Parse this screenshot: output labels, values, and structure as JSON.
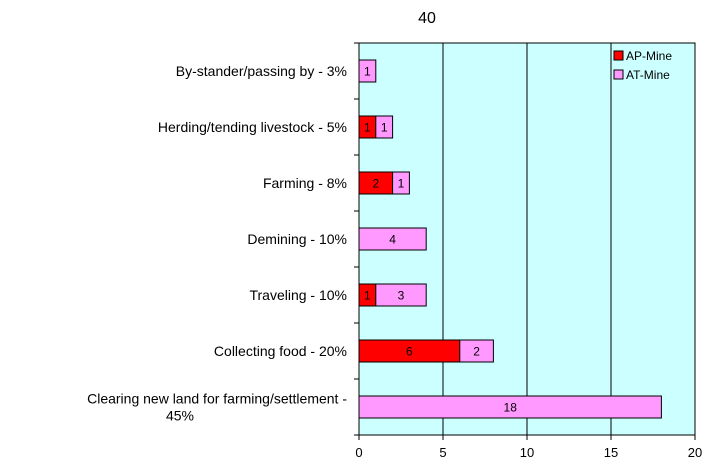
{
  "chart_data": {
    "type": "bar",
    "orientation": "horizontal",
    "stacked": true,
    "title": "40",
    "xlabel": "",
    "ylabel": "",
    "xlim": [
      0,
      20
    ],
    "xticks": [
      0,
      5,
      10,
      15,
      20
    ],
    "grid": "vertical",
    "legend_position": "top-right",
    "categories": [
      [
        "By-stander/passing by - 3%"
      ],
      [
        "Herding/tending livestock - 5%"
      ],
      [
        "Farming - 8%"
      ],
      [
        "Demining - 10%"
      ],
      [
        "Traveling - 10%"
      ],
      [
        "Collecting food - 20%"
      ],
      [
        "Clearing new land for farming/settlement -",
        "45%"
      ]
    ],
    "series": [
      {
        "name": "AP-Mine",
        "color": "#ff0000",
        "values": [
          0,
          1,
          2,
          0,
          1,
          6,
          0
        ]
      },
      {
        "name": "AT-Mine",
        "color": "#ff99ff",
        "values": [
          1,
          1,
          1,
          4,
          3,
          2,
          18
        ]
      }
    ],
    "plot_background": "#ccffff"
  }
}
